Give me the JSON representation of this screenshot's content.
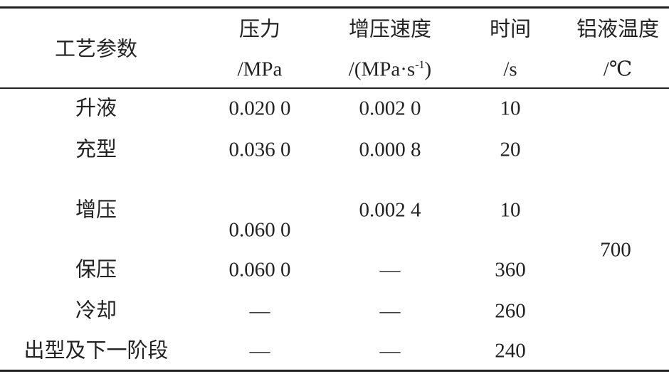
{
  "table": {
    "header": [
      {
        "label": "工艺参数"
      },
      {
        "label": "压力",
        "unit": "/MPa"
      },
      {
        "label": "增压速度",
        "unit": "/(MPa·s",
        "unit_sup": "-1",
        "unit_end": ")"
      },
      {
        "label": "时间",
        "unit": "/s"
      },
      {
        "label": "铝液温度",
        "unit": "/℃"
      }
    ],
    "rows": [
      [
        "升液",
        "0.020 0",
        "0.002 0",
        "10"
      ],
      [
        "充型",
        "0.036 0",
        "0.000 8",
        "20"
      ],
      [
        "增压",
        "0.060 0",
        "0.002 4",
        "10"
      ],
      [
        "保压",
        "0.060 0",
        "—",
        "360"
      ],
      [
        "冷却",
        "—",
        "—",
        "260"
      ],
      [
        "出型及下一阶段",
        "—",
        "—",
        "240"
      ]
    ],
    "temperature": "700"
  }
}
